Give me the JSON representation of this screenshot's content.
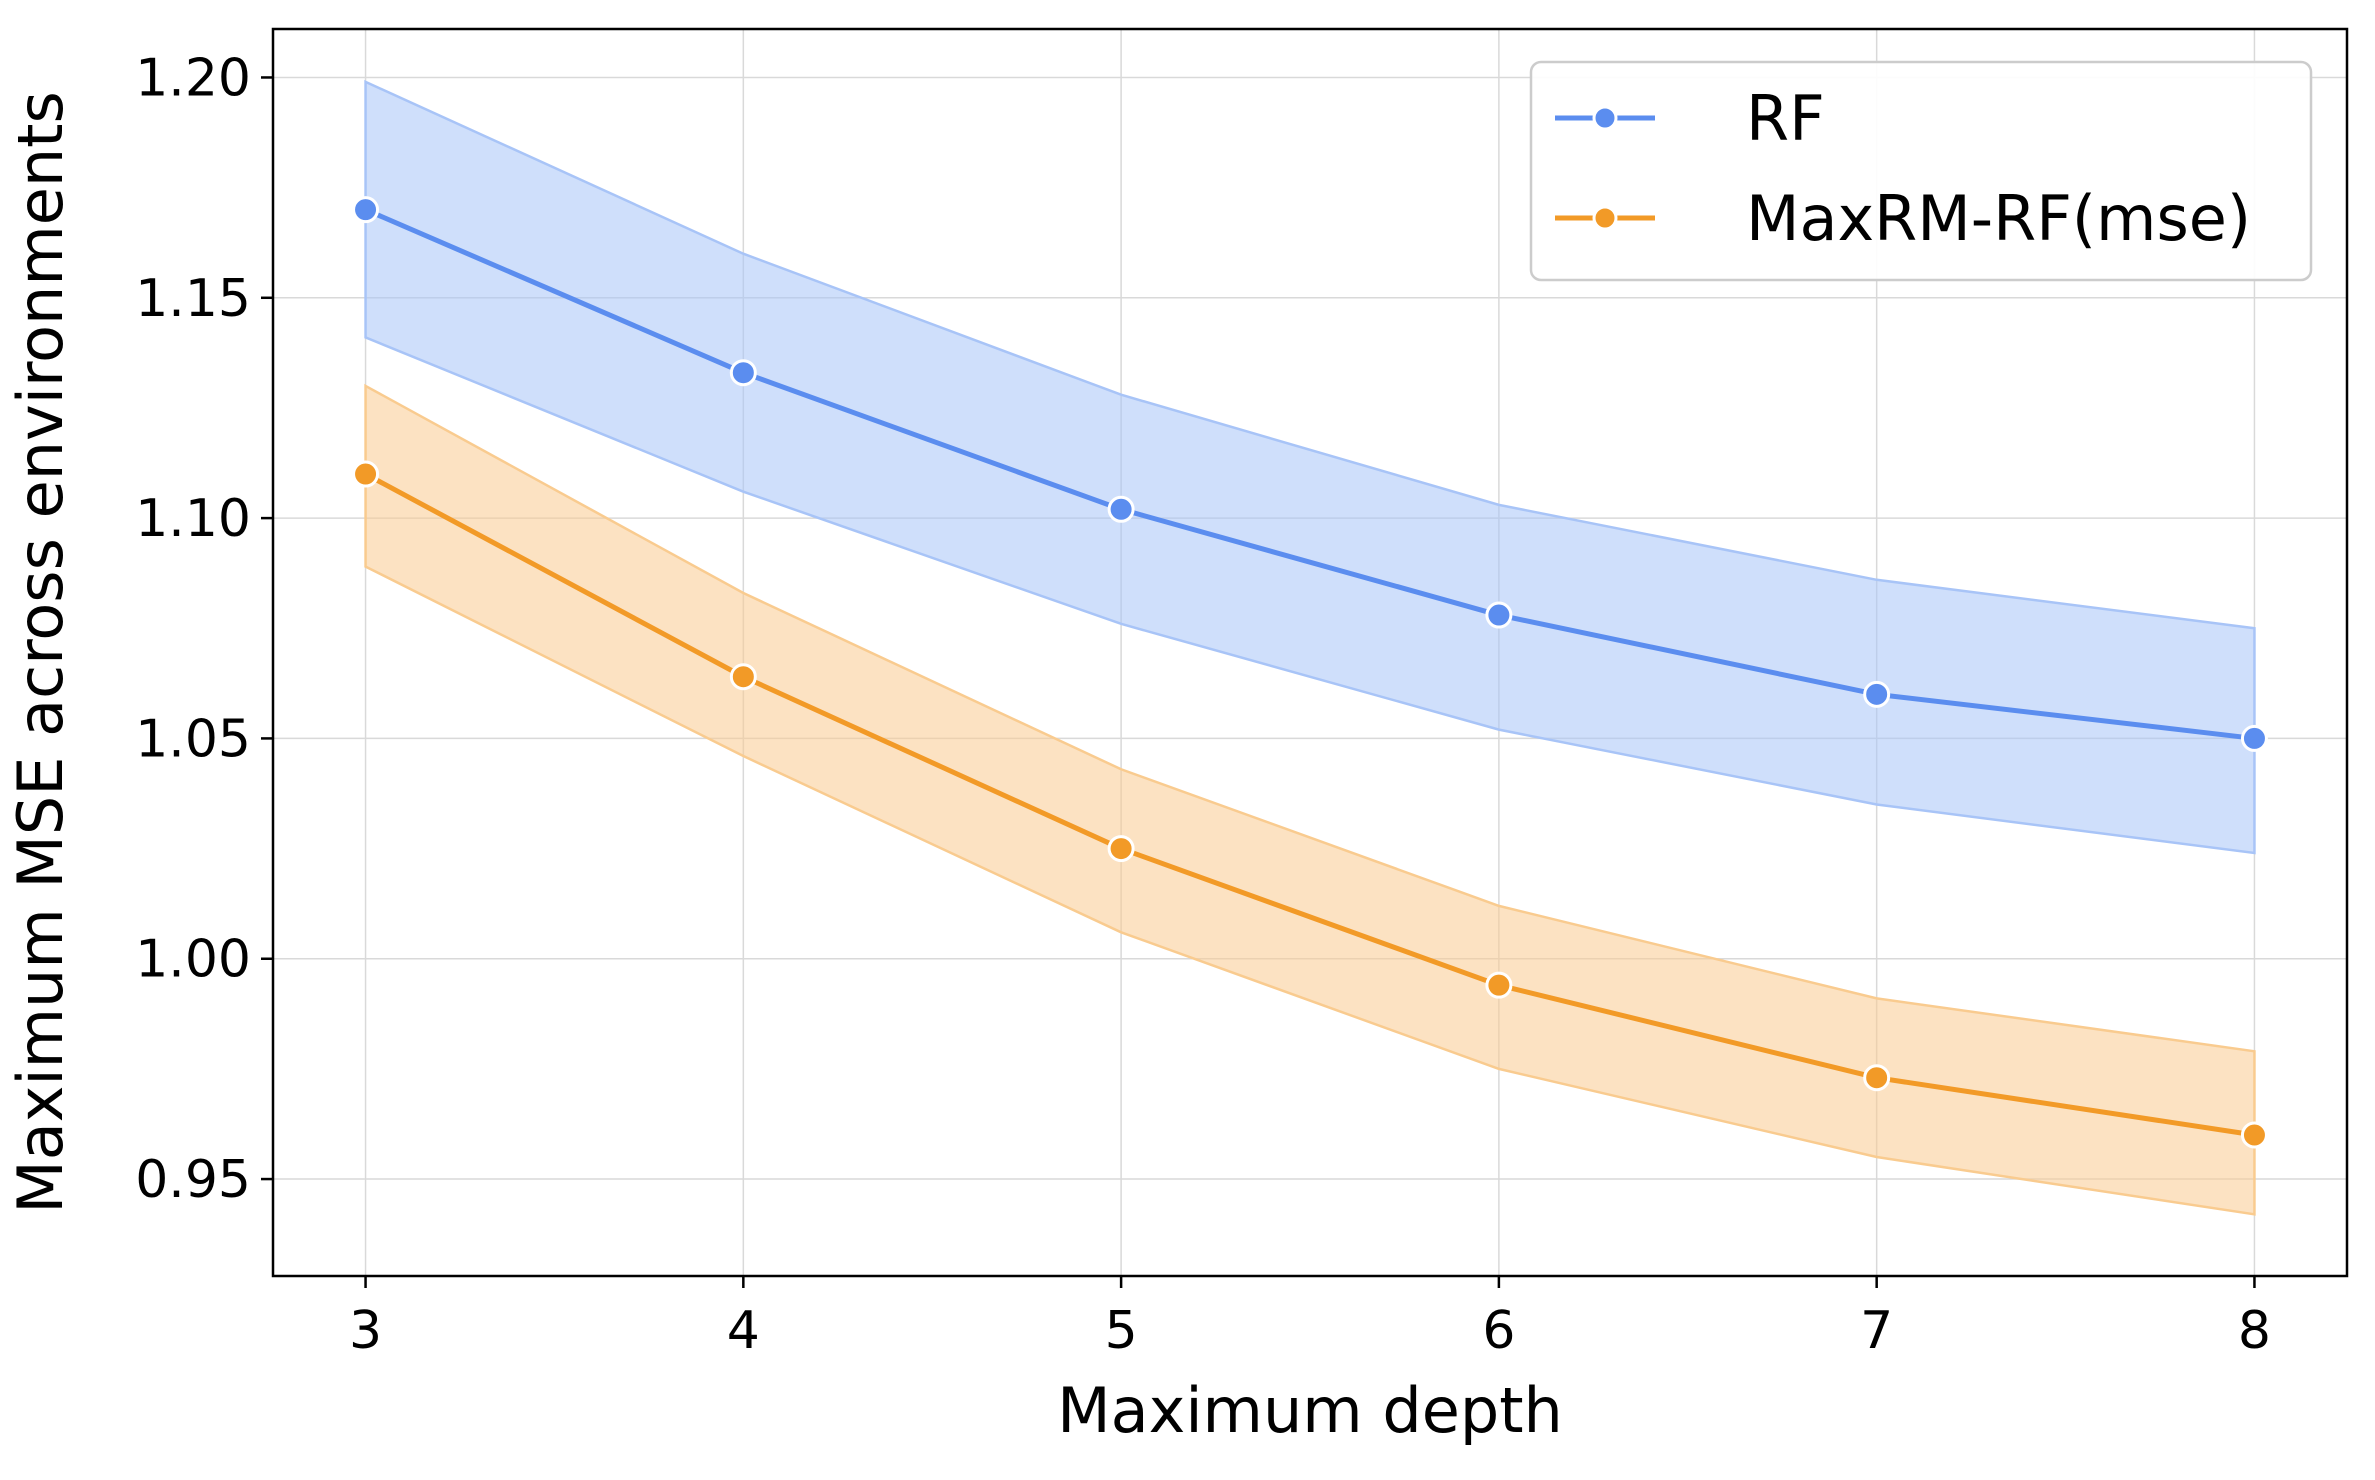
{
  "chart_data": {
    "type": "line",
    "title": "",
    "xlabel": "Maximum depth",
    "ylabel": "Maximum MSE across environments",
    "x": [
      3,
      4,
      5,
      6,
      7,
      8
    ],
    "xticks": [
      "3",
      "4",
      "5",
      "6",
      "7",
      "8"
    ],
    "yticks": [
      "0.95",
      "1.00",
      "1.05",
      "1.10",
      "1.15",
      "1.20"
    ],
    "ytick_values": [
      0.95,
      1.0,
      1.05,
      1.1,
      1.15,
      1.2
    ],
    "xlim": [
      2.755,
      8.245
    ],
    "ylim": [
      0.928,
      1.211
    ],
    "grid": true,
    "legend_position": "top-right",
    "series": [
      {
        "name": "RF",
        "color": "#5b8def",
        "band_color": "#a8c4f7",
        "values": [
          1.17,
          1.133,
          1.102,
          1.078,
          1.06,
          1.05
        ],
        "lower": [
          1.141,
          1.106,
          1.076,
          1.052,
          1.035,
          1.024
        ],
        "upper": [
          1.199,
          1.16,
          1.128,
          1.103,
          1.086,
          1.075
        ]
      },
      {
        "name": "MaxRM-RF(mse)",
        "color": "#f29a27",
        "band_color": "#f9cb8f",
        "values": [
          1.11,
          1.064,
          1.025,
          0.994,
          0.973,
          0.96
        ],
        "lower": [
          1.089,
          1.046,
          1.006,
          0.975,
          0.955,
          0.942
        ],
        "upper": [
          1.13,
          1.083,
          1.043,
          1.012,
          0.991,
          0.979
        ]
      }
    ]
  }
}
